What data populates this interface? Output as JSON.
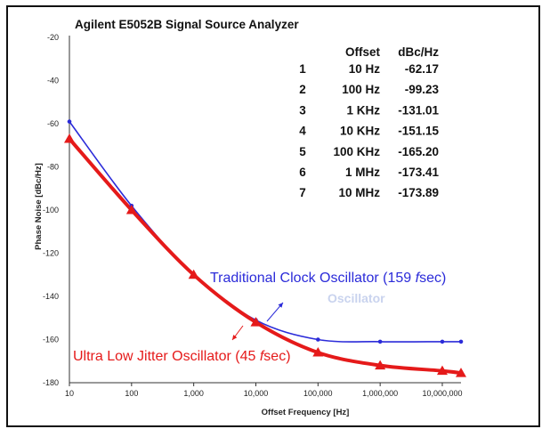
{
  "chart_data": {
    "type": "line",
    "title": "Agilent E5052B Signal Source Analyzer",
    "xlabel": "Offset Frequency [Hz]",
    "ylabel": "Phase Noise [dBc/Hz]",
    "x_scale": "log",
    "xlim": [
      10,
      20000000
    ],
    "ylim": [
      -180,
      -20
    ],
    "x_ticks": [
      10,
      100,
      1000,
      10000,
      100000,
      1000000,
      10000000
    ],
    "x_tick_labels": [
      "10",
      "100",
      "1,000",
      "10,000",
      "100,000",
      "1,000,000",
      "10,000,000"
    ],
    "y_ticks": [
      -20,
      -40,
      -60,
      -80,
      -100,
      -120,
      -140,
      -160,
      -180
    ],
    "y_tick_labels": [
      "-20",
      "-40",
      "-60",
      "-80",
      "-100",
      "-120",
      "-140",
      "-160",
      "-180"
    ],
    "grid": false,
    "colors": {
      "traditional": "#2b2bd9",
      "ultra": "#e51a1a",
      "watermark": "#c9d3ee"
    },
    "series": [
      {
        "name": "Traditional Clock Oscillator (159 fsec)",
        "x": [
          10,
          100,
          1000,
          10000,
          100000,
          1000000,
          10000000,
          20000000
        ],
        "y": [
          -59,
          -98,
          -130,
          -151,
          -160,
          -161,
          -161,
          -161
        ]
      },
      {
        "name": "Ultra Low Jitter Oscillator (45 fsec)",
        "x": [
          10,
          100,
          1000,
          10000,
          100000,
          1000000,
          10000000,
          20000000
        ],
        "y": [
          -67,
          -100,
          -130,
          -152,
          -166,
          -172,
          -174.5,
          -175.5
        ]
      }
    ],
    "annotations": {
      "traditional_prefix": "Traditional Clock Oscillator (159 ",
      "ultra_prefix": "Ultra Low Jitter Oscillator (45 ",
      "unit_f": "f",
      "unit_rest": "sec)",
      "watermark": "Oscillator"
    },
    "table": {
      "headers": [
        "",
        "Offset",
        "dBc/Hz"
      ],
      "rows": [
        [
          "1",
          "10 Hz",
          "-62.17"
        ],
        [
          "2",
          "100 Hz",
          "-99.23"
        ],
        [
          "3",
          "1 KHz",
          "-131.01"
        ],
        [
          "4",
          "10 KHz",
          "-151.15"
        ],
        [
          "5",
          "100 KHz",
          "-165.20"
        ],
        [
          "6",
          "1 MHz",
          "-173.41"
        ],
        [
          "7",
          "10 MHz",
          "-173.89"
        ]
      ]
    }
  }
}
